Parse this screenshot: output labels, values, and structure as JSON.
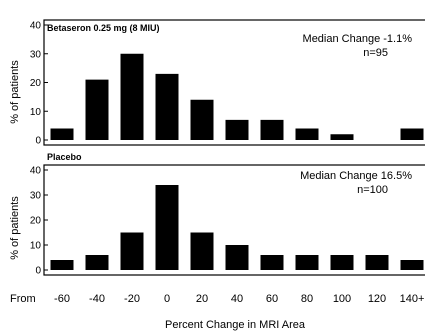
{
  "chart_data": [
    {
      "type": "bar",
      "title": "Betaseron 0.25 mg (8 MIU)",
      "annotation": [
        "Median Change -1.1%",
        "n=95"
      ],
      "ylabel": "% of patients",
      "ylim": [
        0,
        40
      ],
      "yticks": [
        0,
        10,
        20,
        30,
        40
      ],
      "values": [
        4,
        21,
        30,
        23,
        14,
        7,
        7,
        4,
        2,
        0,
        4
      ]
    },
    {
      "type": "bar",
      "title": "Placebo",
      "annotation": [
        "Median Change 16.5%",
        "n=100"
      ],
      "ylabel": "% of patients",
      "ylim": [
        0,
        40
      ],
      "yticks": [
        0,
        10,
        20,
        30,
        40
      ],
      "values": [
        4,
        6,
        15,
        34,
        15,
        10,
        6,
        6,
        6,
        6,
        4
      ]
    }
  ],
  "x_axis": {
    "from_label": "From",
    "tick_labels": [
      "-60",
      "-40",
      "-20",
      "0",
      "20",
      "40",
      "60",
      "80",
      "100",
      "120",
      "140+"
    ],
    "xlabel": "Percent Change in MRI Area"
  }
}
